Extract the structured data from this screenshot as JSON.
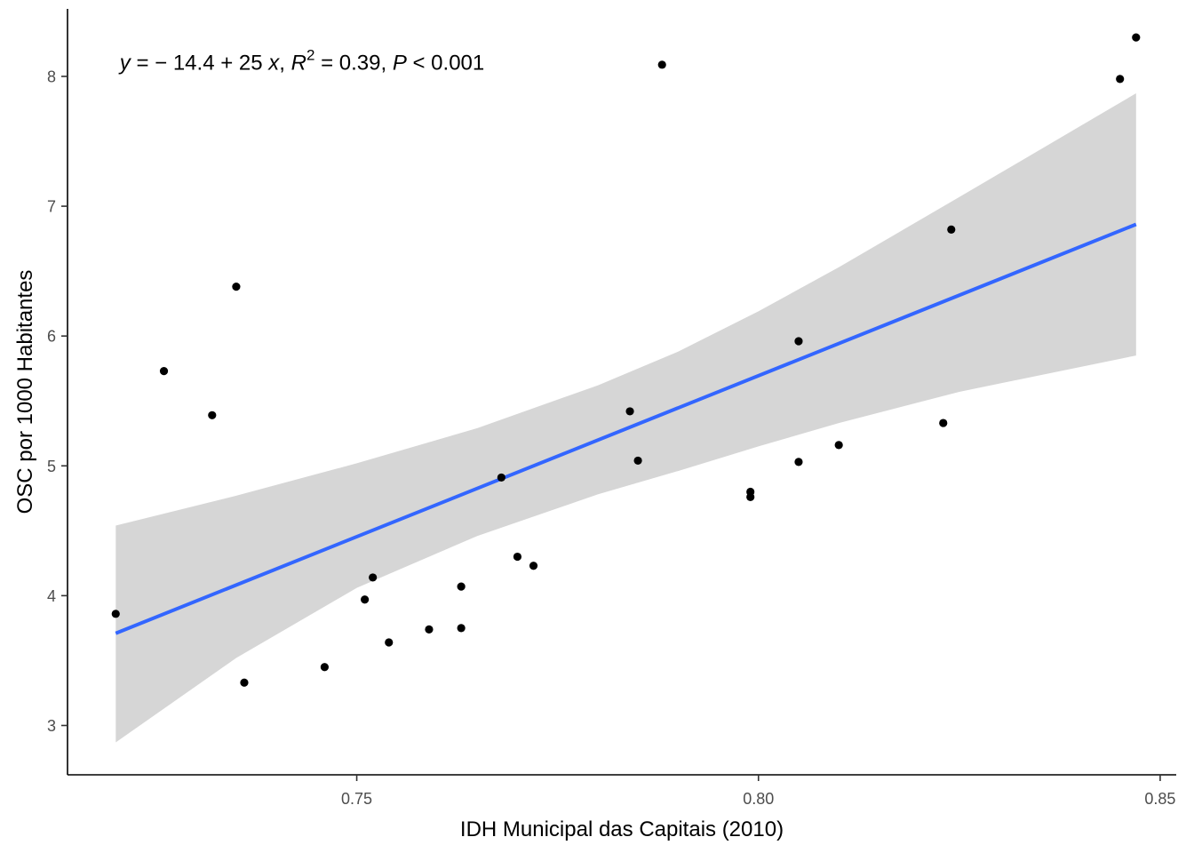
{
  "chart_data": {
    "type": "scatter",
    "xlabel": "IDH Municipal das Capitais (2010)",
    "ylabel": "OSC por 1000 Habitantes",
    "xlim": [
      0.714,
      0.852
    ],
    "ylim": [
      2.62,
      8.52
    ],
    "x_ticks": [
      0.75,
      0.8,
      0.85
    ],
    "x_tick_labels": [
      "0.75",
      "0.80",
      "0.85"
    ],
    "y_ticks": [
      3,
      4,
      5,
      6,
      7,
      8
    ],
    "y_tick_labels": [
      "3",
      "4",
      "5",
      "6",
      "7",
      "8"
    ],
    "grid": false,
    "points": [
      {
        "x": 0.72,
        "y": 3.86
      },
      {
        "x": 0.726,
        "y": 5.73
      },
      {
        "x": 0.732,
        "y": 5.39
      },
      {
        "x": 0.735,
        "y": 6.38
      },
      {
        "x": 0.736,
        "y": 3.33
      },
      {
        "x": 0.746,
        "y": 3.45
      },
      {
        "x": 0.751,
        "y": 3.97
      },
      {
        "x": 0.752,
        "y": 4.14
      },
      {
        "x": 0.754,
        "y": 3.64
      },
      {
        "x": 0.759,
        "y": 3.74
      },
      {
        "x": 0.763,
        "y": 3.75
      },
      {
        "x": 0.763,
        "y": 4.07
      },
      {
        "x": 0.768,
        "y": 4.91
      },
      {
        "x": 0.77,
        "y": 4.3
      },
      {
        "x": 0.772,
        "y": 4.23
      },
      {
        "x": 0.784,
        "y": 5.42
      },
      {
        "x": 0.785,
        "y": 5.04
      },
      {
        "x": 0.788,
        "y": 8.09
      },
      {
        "x": 0.799,
        "y": 4.76
      },
      {
        "x": 0.799,
        "y": 4.8
      },
      {
        "x": 0.805,
        "y": 5.03
      },
      {
        "x": 0.805,
        "y": 5.96
      },
      {
        "x": 0.81,
        "y": 5.16
      },
      {
        "x": 0.823,
        "y": 5.33
      },
      {
        "x": 0.824,
        "y": 6.82
      },
      {
        "x": 0.845,
        "y": 7.98
      },
      {
        "x": 0.847,
        "y": 8.3
      }
    ],
    "fit_line": {
      "x": [
        0.72,
        0.847
      ],
      "y": [
        3.71,
        6.86
      ]
    },
    "confidence_band": {
      "x": [
        0.72,
        0.735,
        0.75,
        0.765,
        0.78,
        0.79,
        0.8,
        0.81,
        0.825,
        0.847
      ],
      "upper": [
        4.54,
        4.77,
        5.02,
        5.29,
        5.62,
        5.88,
        6.19,
        6.53,
        7.07,
        7.87
      ],
      "lower": [
        2.87,
        3.52,
        4.06,
        4.46,
        4.78,
        4.96,
        5.15,
        5.33,
        5.57,
        5.85
      ]
    },
    "annotation": {
      "x": 0.7205,
      "y": 8.05,
      "y_symbol": "y",
      "eq_sign": " = ",
      "eq_rest": "− 14.4 + 25 ",
      "x_symbol": "x",
      "sep1": ", ",
      "r_symbol": "R",
      "r_exp": "2",
      "r_rest": " = 0.39, ",
      "p_symbol": "P",
      "p_rest": " < 0.001"
    },
    "colors": {
      "point": "#000000",
      "line": "#3366ff",
      "band": "#d6d6d6",
      "axis": "#000000"
    }
  }
}
